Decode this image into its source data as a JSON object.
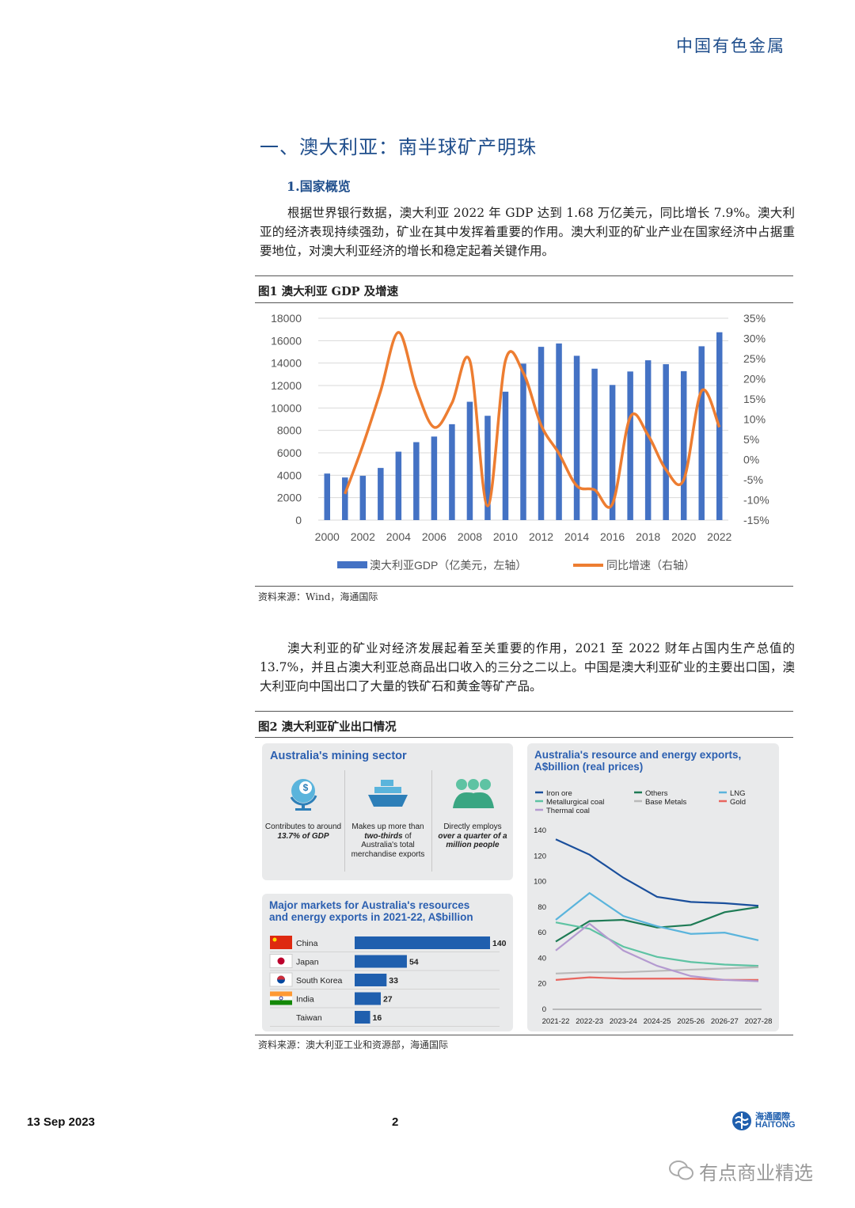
{
  "header": {
    "brand": "中国有色金属"
  },
  "section": {
    "title": "一、澳大利亚：南半球矿产明珠",
    "subtitle": "1.国家概览"
  },
  "paragraphs": [
    "根据世界银行数据，澳大利亚 2022 年 GDP 达到 1.68 万亿美元，同比增长 7.9%。澳大利亚的经济表现持续强劲，矿业在其中发挥着重要的作用。澳大利亚的矿业产业在国家经济中占据重要地位，对澳大利亚经济的增长和稳定起着关键作用。",
    "澳大利亚的矿业对经济发展起着至关重要的作用，2021 至 2022 财年占国内生产总值的 13.7%，并且占澳大利亚总商品出口收入的三分之二以上。中国是澳大利亚矿业的主要出口国，澳大利亚向中国出口了大量的铁矿石和黄金等矿产品。"
  ],
  "figure1": {
    "caption": "图1  澳大利亚 GDP 及增速",
    "source": "资料来源：Wind，海通国际"
  },
  "figure2": {
    "caption": "图2  澳大利亚矿业出口情况",
    "source": "资料来源：澳大利亚工业和资源部，海通国际"
  },
  "infographic": {
    "mining_title": "Australia's mining sector",
    "stats": [
      {
        "icon": "globe-dollar-icon",
        "pre": "Contributes to around",
        "em": "13.7% of GDP",
        "post": ""
      },
      {
        "icon": "ship-icon",
        "pre": "Makes up more than",
        "em": "two-thirds",
        "post": "of Australia's total merchandise exports"
      },
      {
        "icon": "people-icon",
        "pre": "Directly employs",
        "em": "over a quarter of a million people",
        "post": ""
      }
    ],
    "markets_title": "Major markets for Australia's resources and energy exports in 2021-22, A$billion",
    "exports_title": "Australia's resource and energy exports, A$billion (real prices)"
  },
  "chart_data": [
    {
      "type": "bar",
      "title": "",
      "categories": [
        "2000",
        "2001",
        "2002",
        "2003",
        "2004",
        "2005",
        "2006",
        "2007",
        "2008",
        "2009",
        "2010",
        "2011",
        "2012",
        "2013",
        "2014",
        "2015",
        "2016",
        "2017",
        "2018",
        "2019",
        "2020",
        "2021",
        "2022"
      ],
      "x_tick_labels": [
        "2000",
        "2002",
        "2004",
        "2006",
        "2008",
        "2010",
        "2012",
        "2014",
        "2016",
        "2018",
        "2020",
        "2022"
      ],
      "series": [
        {
          "name": "澳大利亚GDP（亿美元，左轴）",
          "type": "bar",
          "axis": "left",
          "color": "#4472c4",
          "values": [
            4150,
            3800,
            3950,
            4650,
            6100,
            6950,
            7450,
            8550,
            10550,
            9300,
            11450,
            13950,
            15450,
            15750,
            14650,
            13500,
            12050,
            13250,
            14250,
            13900,
            13280,
            15500,
            16750
          ]
        },
        {
          "name": "同比增速（右轴）",
          "type": "line",
          "axis": "right",
          "color": "#ed7d31",
          "values": [
            null,
            -8.5,
            3.5,
            17.0,
            31.5,
            17.5,
            8.0,
            14.0,
            24.5,
            -11.5,
            24.5,
            21.5,
            8.5,
            1.5,
            -6.5,
            -7.5,
            -11.0,
            10.5,
            6.0,
            -2.5,
            -5.0,
            17.0,
            8.0
          ]
        }
      ],
      "y_left_range": [
        0,
        18000
      ],
      "y_left_ticks": [
        "0",
        "2000",
        "4000",
        "6000",
        "8000",
        "10000",
        "12000",
        "14000",
        "16000",
        "18000"
      ],
      "y_right_range": [
        -15,
        35
      ],
      "y_right_ticks": [
        "-15%",
        "-10%",
        "-5%",
        "0%",
        "5%",
        "10%",
        "15%",
        "20%",
        "25%",
        "30%",
        "35%"
      ],
      "grid": true,
      "legend": "bottom"
    },
    {
      "type": "bar",
      "title": "Major markets for Australia's resources and energy exports in 2021-22, A$billion",
      "orientation": "horizontal",
      "categories": [
        "China",
        "Japan",
        "South Korea",
        "India",
        "Taiwan"
      ],
      "values": [
        140,
        54,
        33,
        27,
        16
      ],
      "color": "#1f5fae"
    },
    {
      "type": "line",
      "title": "Australia's resource and energy exports, A$billion (real prices)",
      "x": [
        "2021-22",
        "2022-23",
        "2023-24",
        "2024-25",
        "2025-26",
        "2026-27",
        "2027-28"
      ],
      "ylim": [
        0,
        140
      ],
      "y_ticks": [
        "0",
        "20",
        "40",
        "60",
        "80",
        "100",
        "120",
        "140"
      ],
      "legend": "top",
      "series": [
        {
          "name": "Iron ore",
          "color": "#1a4f9c",
          "values": [
            133,
            121,
            103,
            88,
            84,
            83,
            81
          ]
        },
        {
          "name": "Others",
          "color": "#1e7b55",
          "values": [
            53,
            69,
            70,
            64,
            66,
            76,
            80
          ]
        },
        {
          "name": "LNG",
          "color": "#5ab4dc",
          "values": [
            70,
            91,
            73,
            65,
            59,
            60,
            54
          ]
        },
        {
          "name": "Metallurgical coal",
          "color": "#5ec3a3",
          "values": [
            68,
            63,
            49,
            41,
            37,
            35,
            34
          ]
        },
        {
          "name": "Base Metals",
          "color": "#b9b9b9",
          "values": [
            28,
            29,
            29,
            30,
            31,
            32,
            33
          ]
        },
        {
          "name": "Gold",
          "color": "#e8665f",
          "values": [
            23,
            25,
            24,
            24,
            24,
            23,
            23
          ]
        },
        {
          "name": "Thermal coal",
          "color": "#b49ad0",
          "values": [
            46,
            67,
            46,
            34,
            26,
            23,
            22
          ]
        }
      ]
    }
  ],
  "footer": {
    "date": "13 Sep 2023",
    "page": "2",
    "logo_cn": "海通國際",
    "logo_en": "HAITONG",
    "watermark": "有点商业精选"
  }
}
